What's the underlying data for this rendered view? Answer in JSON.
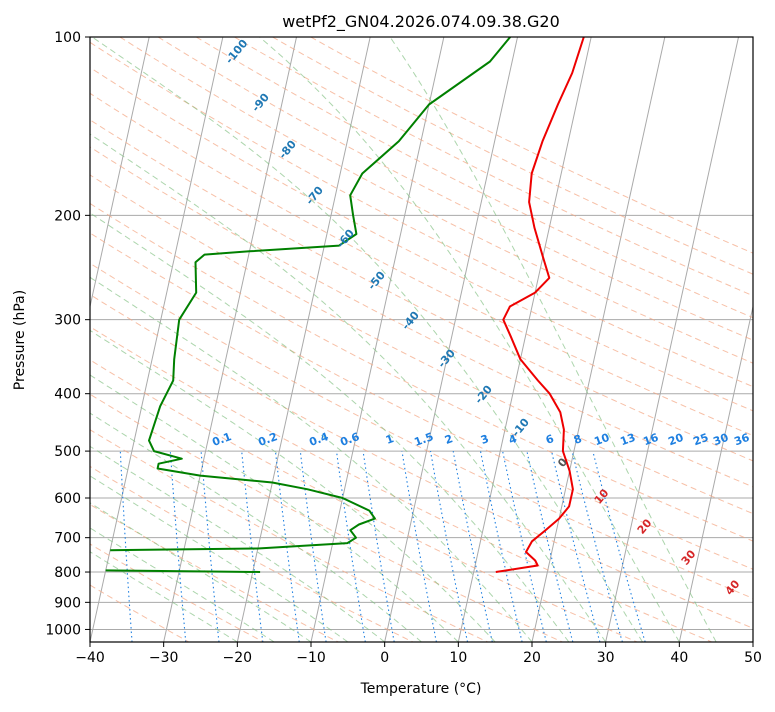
{
  "chart_data": {
    "type": "line",
    "subtype": "skew-t log-p diagram",
    "title": "wetPf2_GN04.2026.074.09.38.G20",
    "xlabel": "Temperature (°C)",
    "ylabel": "Pressure (hPa)",
    "xlim": [
      -40,
      50
    ],
    "ylim": [
      1050,
      100
    ],
    "y_scale": "log",
    "grid": true,
    "x_ticks": [
      "−40",
      "−30",
      "−20",
      "−10",
      "0",
      "10",
      "20",
      "30",
      "40",
      "50"
    ],
    "y_ticks": [
      "100",
      "200",
      "300",
      "400",
      "500",
      "600",
      "700",
      "800",
      "900",
      "1000"
    ],
    "y_tick_values": [
      100,
      200,
      300,
      400,
      500,
      600,
      700,
      800,
      900,
      1000
    ],
    "temperature_profile": {
      "color": "#ee0000",
      "points": [
        {
          "p": 100,
          "t": 9
        },
        {
          "p": 115,
          "t": 8.5
        },
        {
          "p": 130,
          "t": 7.5
        },
        {
          "p": 150,
          "t": 6.5
        },
        {
          "p": 170,
          "t": 6
        },
        {
          "p": 190,
          "t": 6.5
        },
        {
          "p": 210,
          "t": 8
        },
        {
          "p": 235,
          "t": 10
        },
        {
          "p": 255,
          "t": 11.5
        },
        {
          "p": 270,
          "t": 10
        },
        {
          "p": 285,
          "t": 7
        },
        {
          "p": 300,
          "t": 6.5
        },
        {
          "p": 320,
          "t": 8
        },
        {
          "p": 350,
          "t": 10
        },
        {
          "p": 380,
          "t": 13
        },
        {
          "p": 400,
          "t": 15
        },
        {
          "p": 430,
          "t": 17
        },
        {
          "p": 460,
          "t": 18
        },
        {
          "p": 500,
          "t": 18.5
        },
        {
          "p": 540,
          "t": 20
        },
        {
          "p": 580,
          "t": 21
        },
        {
          "p": 620,
          "t": 21
        },
        {
          "p": 650,
          "t": 20
        },
        {
          "p": 680,
          "t": 18.5
        },
        {
          "p": 710,
          "t": 17
        },
        {
          "p": 740,
          "t": 16.5
        },
        {
          "p": 765,
          "t": 18
        },
        {
          "p": 780,
          "t": 18.5
        },
        {
          "p": 800,
          "t": 13
        }
      ]
    },
    "dewpoint_profile": {
      "color": "#008000",
      "points": [
        {
          "p": 100,
          "t": -1
        },
        {
          "p": 110,
          "t": -3
        },
        {
          "p": 130,
          "t": -10
        },
        {
          "p": 150,
          "t": -13
        },
        {
          "p": 170,
          "t": -17
        },
        {
          "p": 185,
          "t": -18
        },
        {
          "p": 200,
          "t": -17
        },
        {
          "p": 215,
          "t": -16
        },
        {
          "p": 225,
          "t": -18
        },
        {
          "p": 230,
          "t": -30
        },
        {
          "p": 233,
          "t": -36
        },
        {
          "p": 240,
          "t": -37
        },
        {
          "p": 270,
          "t": -36
        },
        {
          "p": 300,
          "t": -37.5
        },
        {
          "p": 350,
          "t": -37
        },
        {
          "p": 380,
          "t": -36.5
        },
        {
          "p": 420,
          "t": -37.5
        },
        {
          "p": 480,
          "t": -38
        },
        {
          "p": 500,
          "t": -37
        },
        {
          "p": 515,
          "t": -33
        },
        {
          "p": 525,
          "t": -36
        },
        {
          "p": 535,
          "t": -36
        },
        {
          "p": 550,
          "t": -30
        },
        {
          "p": 565,
          "t": -20
        },
        {
          "p": 580,
          "t": -15
        },
        {
          "p": 600,
          "t": -10
        },
        {
          "p": 630,
          "t": -6
        },
        {
          "p": 650,
          "t": -5
        },
        {
          "p": 665,
          "t": -7
        },
        {
          "p": 680,
          "t": -8
        },
        {
          "p": 700,
          "t": -7
        },
        {
          "p": 715,
          "t": -8
        },
        {
          "p": 730,
          "t": -20
        },
        {
          "p": 735,
          "t": -40
        }
      ],
      "extra_segment": [
        {
          "p": 795,
          "t": -40
        },
        {
          "p": 800,
          "t": -19
        }
      ]
    },
    "isotherm_spacing": 10,
    "dry_adiabat_labels": [
      "-100",
      "-90",
      "-80",
      "-70",
      "-60",
      "-50",
      "-40",
      "-30",
      "-20",
      "-10",
      "0",
      "10",
      "20",
      "30",
      "40"
    ],
    "mixing_ratio_labels": [
      "0.1",
      "0.2",
      "0.4",
      "0.6",
      "1",
      "1.5",
      "2",
      "3",
      "4",
      "6",
      "8",
      "10",
      "13",
      "16",
      "20",
      "25",
      "30",
      "36"
    ],
    "mixing_ratio_values": [
      0.1,
      0.2,
      0.4,
      0.6,
      1,
      1.5,
      2,
      3,
      4,
      6,
      8,
      10,
      13,
      16,
      20,
      25,
      30,
      36
    ],
    "colors": {
      "dry_adiabat": "#f4a582",
      "moist_adiabat": "#7fbf7f",
      "mixing_ratio": "#1e7fe0",
      "grid": "#aaaaaa",
      "label_blue": "#1f78b4",
      "label_red": "#d62728",
      "label_gray": "#555555"
    }
  }
}
